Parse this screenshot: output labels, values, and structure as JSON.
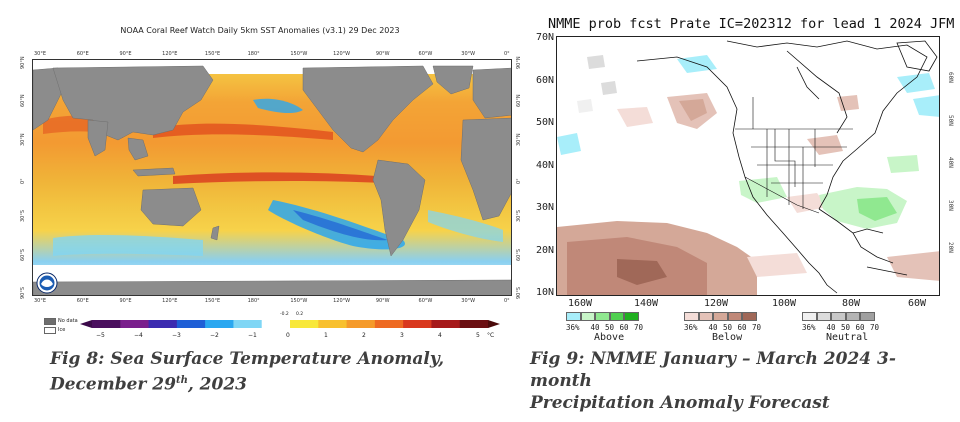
{
  "sst": {
    "title": "NOAA Coral Reef Watch Daily 5km SST Anomalies  (v3.1)   29 Dec 2023",
    "top_lon_ticks": [
      "30°E",
      "60°E",
      "90°E",
      "120°E",
      "150°E",
      "180°",
      "150°W",
      "120°W",
      "90°W",
      "60°W",
      "30°W",
      "0°"
    ],
    "bottom_lon_ticks": [
      "30°E",
      "60°E",
      "90°E",
      "120°E",
      "150°E",
      "180°",
      "150°W",
      "120°W",
      "90°W",
      "60°W",
      "30°W",
      "0°"
    ],
    "left_lat_ticks": [
      "90°N",
      "60°N",
      "30°N",
      "0°",
      "30°S",
      "60°S",
      "90°S"
    ],
    "right_lat_ticks": [
      "90°N",
      "60°N",
      "30°N",
      "0°",
      "30°S",
      "60°S",
      "90°S"
    ],
    "legend": {
      "values": [
        "−5",
        "−4",
        "−3",
        "−2",
        "−1",
        "0",
        "1",
        "2",
        "3",
        "4",
        "5"
      ],
      "small_values": [
        "-0.2",
        "0.2"
      ],
      "unit": "°C",
      "colors": [
        "#4a0f5e",
        "#7a1f8c",
        "#3c2bb0",
        "#1f5fd6",
        "#2aa7f0",
        "#7fd6f5",
        "#ffffff",
        "#f8e83a",
        "#f8c02e",
        "#f59a2a",
        "#ee6a22",
        "#d9381e",
        "#a6191a",
        "#6b0f12"
      ]
    },
    "key": {
      "no_data": "No data",
      "ice": "Ice"
    }
  },
  "nmme": {
    "title": "NMME prob fcst Prate IC=202312 for lead 1 2024 JFM",
    "lat_labels": [
      "70N",
      "60N",
      "50N",
      "40N",
      "30N",
      "20N",
      "10N"
    ],
    "right_lat_labels": [
      "60N",
      "50N",
      "40N",
      "30N",
      "20N"
    ],
    "lon_labels": [
      "160W",
      "140W",
      "120W",
      "100W",
      "80W",
      "60W"
    ],
    "legend": {
      "above": {
        "label": "Above",
        "nums": [
          "36%",
          "40",
          "50",
          "60",
          "70"
        ],
        "colors": [
          "#a8eefa",
          "#c8f5c8",
          "#90e890",
          "#50d050",
          "#20b020"
        ]
      },
      "below": {
        "label": "Below",
        "nums": [
          "36%",
          "40",
          "50",
          "60",
          "70"
        ],
        "colors": [
          "#f4ddd8",
          "#e4c2b8",
          "#d4a898",
          "#c08878",
          "#a06858"
        ]
      },
      "neutral": {
        "label": "Neutral",
        "nums": [
          "36%",
          "40",
          "50",
          "60",
          "70"
        ],
        "colors": [
          "#f0f0f0",
          "#dcdcdc",
          "#c8c8c8",
          "#b4b4b4",
          "#a0a0a0"
        ]
      }
    }
  },
  "captions": {
    "fig8_line1": "Fig 8: Sea Surface Temperature Anomaly,",
    "fig8_line2_pre": "December 29",
    "fig8_sup": "th",
    "fig8_line2_post": ", 2023",
    "fig9_line1": "Fig 9:  NMME January – March 2024 3-month",
    "fig9_line2": "Precipitation Anomaly Forecast"
  }
}
